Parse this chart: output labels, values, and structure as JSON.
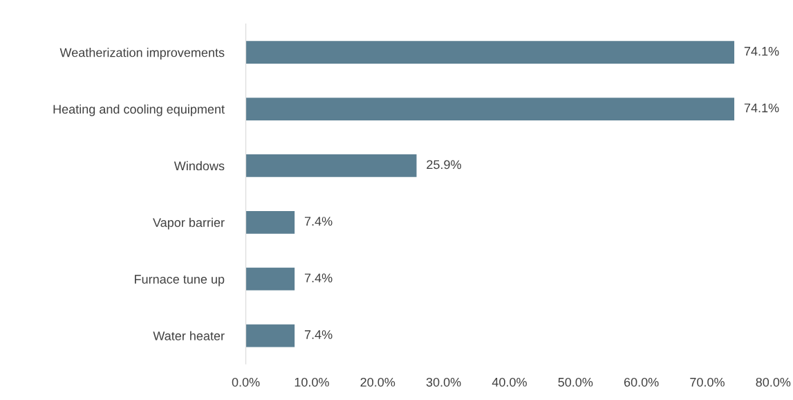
{
  "chart_data": {
    "type": "bar",
    "orientation": "horizontal",
    "categories": [
      "Weatherization improvements",
      "Heating and cooling equipment",
      "Windows",
      "Vapor barrier",
      "Furnace tune up",
      "Water heater"
    ],
    "values": [
      74.1,
      74.1,
      25.9,
      7.4,
      7.4,
      7.4
    ],
    "value_labels": [
      "74.1%",
      "74.1%",
      "25.9%",
      "7.4%",
      "7.4%",
      "7.4%"
    ],
    "color": "#5b7f92",
    "xlim": [
      0,
      80
    ],
    "xticks": [
      {
        "value": 0,
        "label": "0.0%"
      },
      {
        "value": 10,
        "label": "10.0%"
      },
      {
        "value": 20,
        "label": "20.0%"
      },
      {
        "value": 30,
        "label": "30.0%"
      },
      {
        "value": 40,
        "label": "40.0%"
      },
      {
        "value": 50,
        "label": "50.0%"
      },
      {
        "value": 60,
        "label": "60.0%"
      },
      {
        "value": 70,
        "label": "70.0%"
      },
      {
        "value": 80,
        "label": "80.0%"
      }
    ],
    "grid": false
  }
}
